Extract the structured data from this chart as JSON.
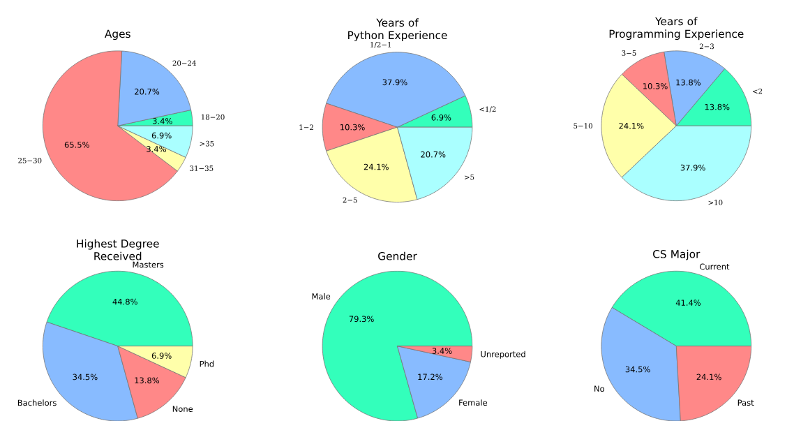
{
  "chart_data": [
    {
      "type": "pie",
      "title": "Ages",
      "categories": [
        "18−20",
        "20−24",
        "25−30",
        "31−35",
        ">35"
      ],
      "values": [
        3.4,
        20.7,
        65.5,
        3.4,
        6.9
      ],
      "value_labels": [
        "3.4%",
        "20.7%",
        "65.5%",
        "3.4%",
        "6.9%"
      ],
      "colors": [
        "#33ffbb",
        "#88bbff",
        "#ff8888",
        "#ffffaa",
        "#aaffff"
      ]
    },
    {
      "type": "pie",
      "title": "Years of\nPython Experience",
      "categories": [
        "<1/2",
        "1/2−1",
        "1−2",
        "2−5",
        ">5"
      ],
      "values": [
        6.9,
        37.9,
        10.3,
        24.1,
        20.7
      ],
      "value_labels": [
        "6.9%",
        "37.9%",
        "10.3%",
        "24.1%",
        "20.7%"
      ],
      "colors": [
        "#33ffbb",
        "#88bbff",
        "#ff8888",
        "#ffffaa",
        "#aaffff"
      ]
    },
    {
      "type": "pie",
      "title": "Years of\nProgramming Experience",
      "categories": [
        "<2",
        "2−3",
        "3−5",
        "5−10",
        ">10"
      ],
      "values": [
        13.8,
        13.8,
        10.3,
        24.1,
        37.9
      ],
      "value_labels": [
        "13.8%",
        "13.8%",
        "10.3%",
        "24.1%",
        "37.9%"
      ],
      "colors": [
        "#33ffbb",
        "#88bbff",
        "#ff8888",
        "#ffffaa",
        "#aaffff"
      ]
    },
    {
      "type": "pie",
      "title": "Highest Degree\nReceived",
      "categories": [
        "Masters",
        "Bachelors",
        "None",
        "Phd"
      ],
      "values": [
        44.8,
        34.5,
        13.8,
        6.9
      ],
      "value_labels": [
        "44.8%",
        "34.5%",
        "13.8%",
        "6.9%"
      ],
      "colors": [
        "#33ffbb",
        "#88bbff",
        "#ff8888",
        "#ffffaa"
      ]
    },
    {
      "type": "pie",
      "title": "Gender",
      "categories": [
        "Male",
        "Female",
        "Unreported"
      ],
      "values": [
        79.3,
        17.2,
        3.4
      ],
      "value_labels": [
        "79.3%",
        "17.2%",
        "3.4%"
      ],
      "colors": [
        "#33ffbb",
        "#88bbff",
        "#ff8888"
      ]
    },
    {
      "type": "pie",
      "title": "CS Major",
      "categories": [
        "Current",
        "No",
        "Past"
      ],
      "values": [
        41.4,
        34.5,
        24.1
      ],
      "value_labels": [
        "41.4%",
        "34.5%",
        "24.1%"
      ],
      "colors": [
        "#33ffbb",
        "#88bbff",
        "#ff8888"
      ]
    }
  ]
}
